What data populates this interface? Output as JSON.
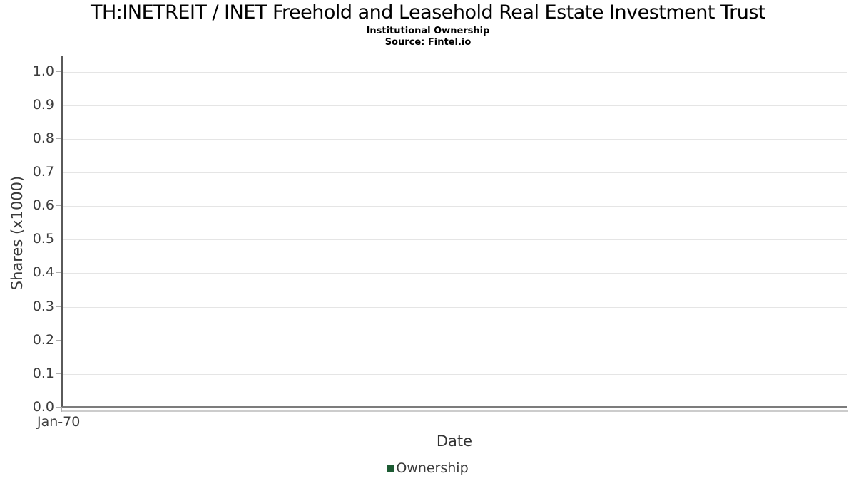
{
  "header": {
    "title": "TH:INETREIT / INET Freehold and Leasehold Real Estate Investment Trust",
    "subtitle": "Institutional Ownership",
    "source": "Source: Fintel.io"
  },
  "chart_data": {
    "type": "line",
    "title": "TH:INETREIT / INET Freehold and Leasehold Real Estate Investment Trust",
    "subtitle": "Institutional Ownership",
    "source": "Source: Fintel.io",
    "xlabel": "Date",
    "ylabel": "Shares (x1000)",
    "x_ticks": [
      "Jan-70"
    ],
    "y_ticks": [
      "0.0",
      "0.1",
      "0.2",
      "0.3",
      "0.4",
      "0.5",
      "0.6",
      "0.7",
      "0.8",
      "0.9",
      "1.0"
    ],
    "ylim": [
      0.0,
      1.0
    ],
    "xlim_labels": [
      "Jan-70"
    ],
    "grid": true,
    "legend_position": "bottom-center",
    "series": [
      {
        "name": "Ownership",
        "color": "#1d5b33",
        "values": []
      }
    ],
    "note": "empty plot - no data points rendered"
  },
  "legend": {
    "items": [
      {
        "label": "Ownership",
        "color": "#1d5b33"
      }
    ]
  },
  "colors": {
    "gridline": "#e5e5e5",
    "plot_border": "#8a8a8a",
    "tick_text": "#3d3d3d",
    "axis_label_text": "#333333",
    "title_text": "#000000",
    "legend_marker": "#1d5b33",
    "background": "#ffffff"
  }
}
